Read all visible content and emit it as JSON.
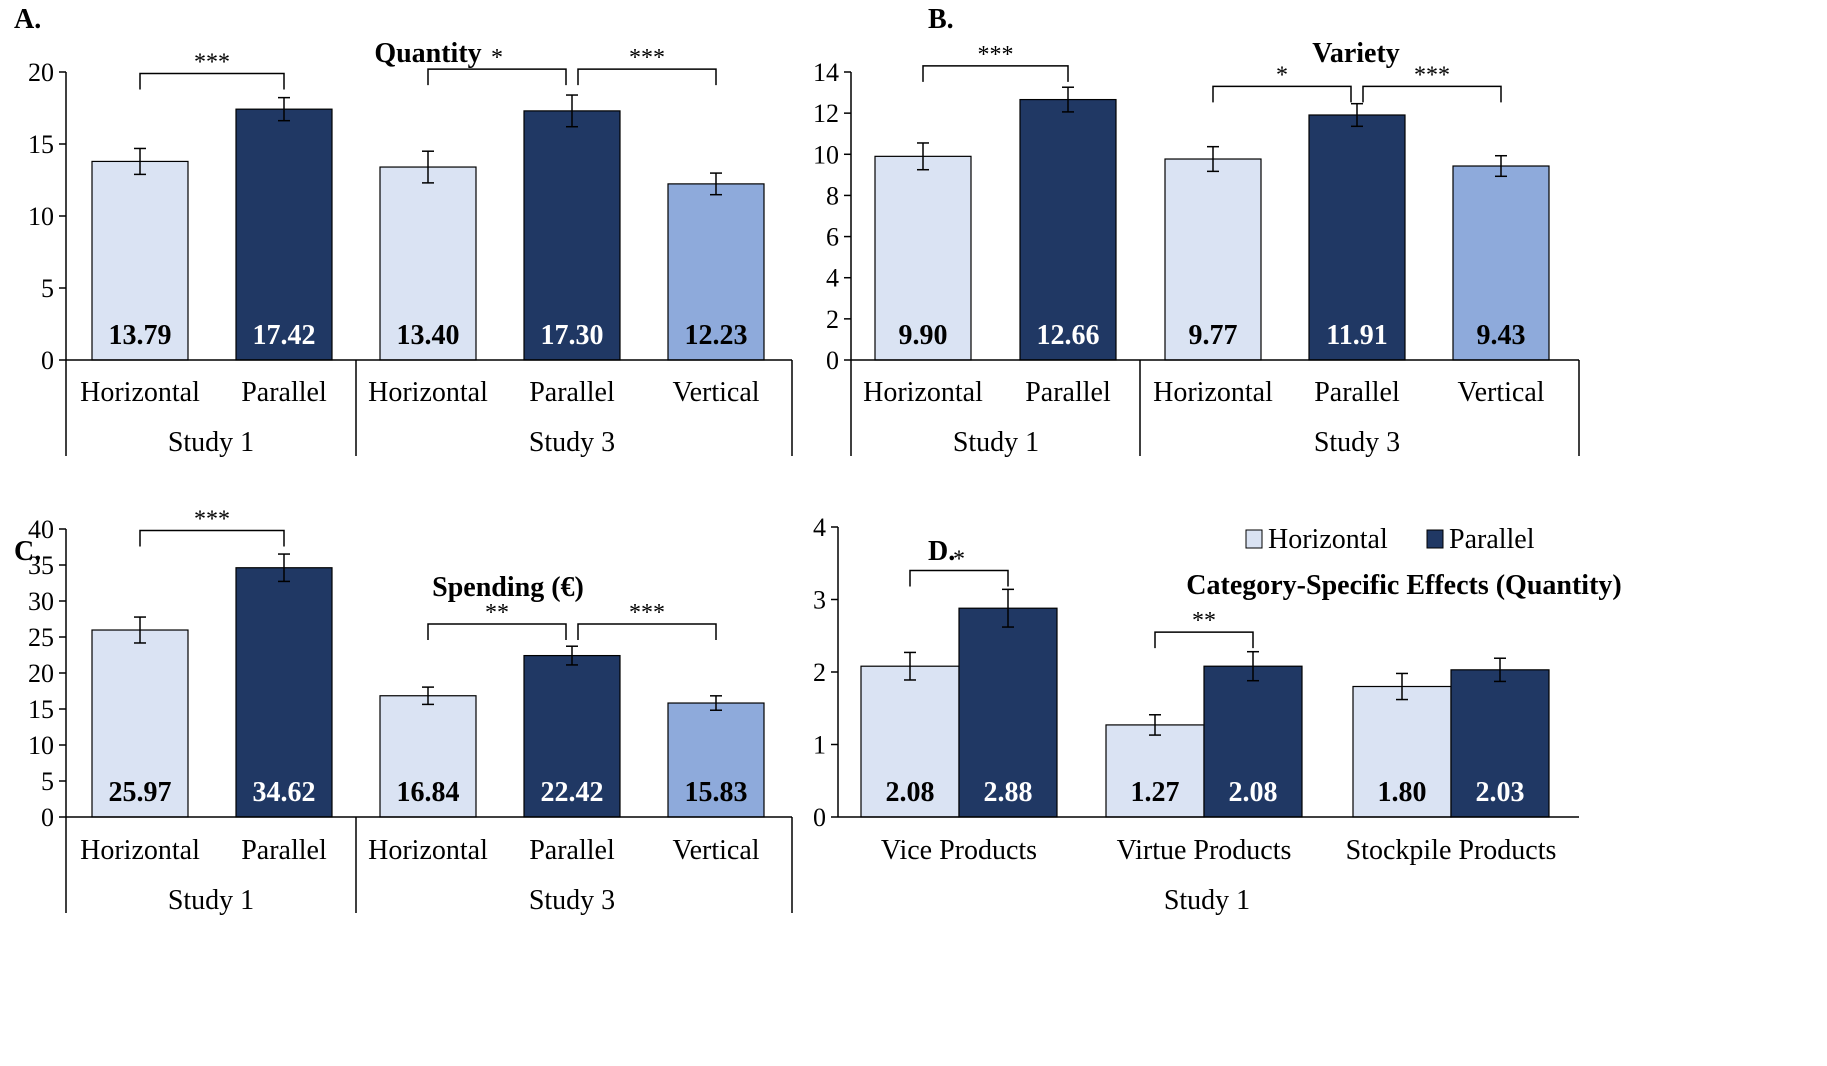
{
  "colors": {
    "horizontal": "#dae3f3",
    "parallel": "#203864",
    "vertical": "#8eaadb",
    "axis": "#000000"
  },
  "panels": [
    {
      "letter": "A.",
      "chart_data": {
        "type": "bar",
        "title": "Quantity",
        "ylim": [
          0,
          20
        ],
        "yticks": [
          0,
          5,
          10,
          15,
          20
        ],
        "groups": [
          {
            "name": "Study 1",
            "bars": [
              {
                "category": "Horizontal",
                "value": 13.79,
                "value_label": "13.79",
                "error": 0.9,
                "series": "horizontal"
              },
              {
                "category": "Parallel",
                "value": 17.42,
                "value_label": "17.42",
                "error": 0.8,
                "series": "parallel"
              }
            ]
          },
          {
            "name": "Study 3",
            "bars": [
              {
                "category": "Horizontal",
                "value": 13.4,
                "value_label": "13.40",
                "error": 1.1,
                "series": "horizontal"
              },
              {
                "category": "Parallel",
                "value": 17.3,
                "value_label": "17.30",
                "error": 1.1,
                "series": "parallel"
              },
              {
                "category": "Vertical",
                "value": 12.23,
                "value_label": "12.23",
                "error": 0.75,
                "series": "vertical"
              }
            ]
          }
        ],
        "significance": [
          {
            "from": 0,
            "to": 1,
            "label": "***",
            "level": 19.9
          },
          {
            "from": 2,
            "to": 3,
            "label": "*",
            "level": 20.2
          },
          {
            "from": 3,
            "to": 4,
            "label": "***",
            "level": 20.2
          }
        ],
        "legend": null
      }
    },
    {
      "letter": "B.",
      "chart_data": {
        "type": "bar",
        "title": "Variety",
        "ylim": [
          0,
          14
        ],
        "yticks": [
          0,
          2,
          4,
          6,
          8,
          10,
          12,
          14
        ],
        "groups": [
          {
            "name": "Study 1",
            "bars": [
              {
                "category": "Horizontal",
                "value": 9.9,
                "value_label": "9.90",
                "error": 0.65,
                "series": "horizontal"
              },
              {
                "category": "Parallel",
                "value": 12.66,
                "value_label": "12.66",
                "error": 0.6,
                "series": "parallel"
              }
            ]
          },
          {
            "name": "Study 3",
            "bars": [
              {
                "category": "Horizontal",
                "value": 9.77,
                "value_label": "9.77",
                "error": 0.6,
                "series": "horizontal"
              },
              {
                "category": "Parallel",
                "value": 11.91,
                "value_label": "11.91",
                "error": 0.55,
                "series": "parallel"
              },
              {
                "category": "Vertical",
                "value": 9.43,
                "value_label": "9.43",
                "error": 0.5,
                "series": "vertical"
              }
            ]
          }
        ],
        "significance": [
          {
            "from": 0,
            "to": 1,
            "label": "***",
            "level": 14.3
          },
          {
            "from": 2,
            "to": 3,
            "label": "*",
            "level": 13.3
          },
          {
            "from": 3,
            "to": 4,
            "label": "***",
            "level": 13.3
          }
        ],
        "legend": null
      }
    },
    {
      "letter": "C.",
      "chart_data": {
        "type": "bar",
        "title": "Spending (€)",
        "ylim": [
          0,
          40
        ],
        "yticks": [
          0,
          5,
          10,
          15,
          20,
          25,
          30,
          35,
          40
        ],
        "groups": [
          {
            "name": "Study 1",
            "bars": [
              {
                "category": "Horizontal",
                "value": 25.97,
                "value_label": "25.97",
                "error": 1.8,
                "series": "horizontal"
              },
              {
                "category": "Parallel",
                "value": 34.62,
                "value_label": "34.62",
                "error": 1.9,
                "series": "parallel"
              }
            ]
          },
          {
            "name": "Study 3",
            "bars": [
              {
                "category": "Horizontal",
                "value": 16.84,
                "value_label": "16.84",
                "error": 1.2,
                "series": "horizontal"
              },
              {
                "category": "Parallel",
                "value": 22.42,
                "value_label": "22.42",
                "error": 1.3,
                "series": "parallel"
              },
              {
                "category": "Vertical",
                "value": 15.83,
                "value_label": "15.83",
                "error": 1.0,
                "series": "vertical"
              }
            ]
          }
        ],
        "significance": [
          {
            "from": 0,
            "to": 1,
            "label": "***",
            "level": 39.8
          },
          {
            "from": 2,
            "to": 3,
            "label": "**",
            "level": 26.8
          },
          {
            "from": 3,
            "to": 4,
            "label": "***",
            "level": 26.8
          }
        ],
        "legend": null
      }
    },
    {
      "letter": "D.",
      "chart_data": {
        "type": "bar",
        "title": "Category-Specific Effects (Quantity)",
        "ylim": [
          0,
          4
        ],
        "yticks": [
          0,
          1,
          2,
          3,
          4
        ],
        "group_label": "Study 1",
        "categories": [
          "Vice Products",
          "Virtue Products",
          "Stockpile Products"
        ],
        "series": [
          {
            "name": "Horizontal",
            "key": "horizontal",
            "values": [
              2.08,
              1.27,
              1.8
            ],
            "value_labels": [
              "2.08",
              "1.27",
              "1.80"
            ],
            "errors": [
              0.19,
              0.14,
              0.18
            ]
          },
          {
            "name": "Parallel",
            "key": "parallel",
            "values": [
              2.88,
              2.08,
              2.03
            ],
            "value_labels": [
              "2.88",
              "2.08",
              "2.03"
            ],
            "errors": [
              0.26,
              0.2,
              0.16
            ]
          }
        ],
        "significance": [
          {
            "category": 0,
            "label": "*",
            "level": 3.4
          },
          {
            "category": 1,
            "label": "**",
            "level": 2.55
          }
        ],
        "legend": {
          "placement": "top-center",
          "entries": [
            "Horizontal",
            "Parallel"
          ]
        }
      }
    }
  ]
}
